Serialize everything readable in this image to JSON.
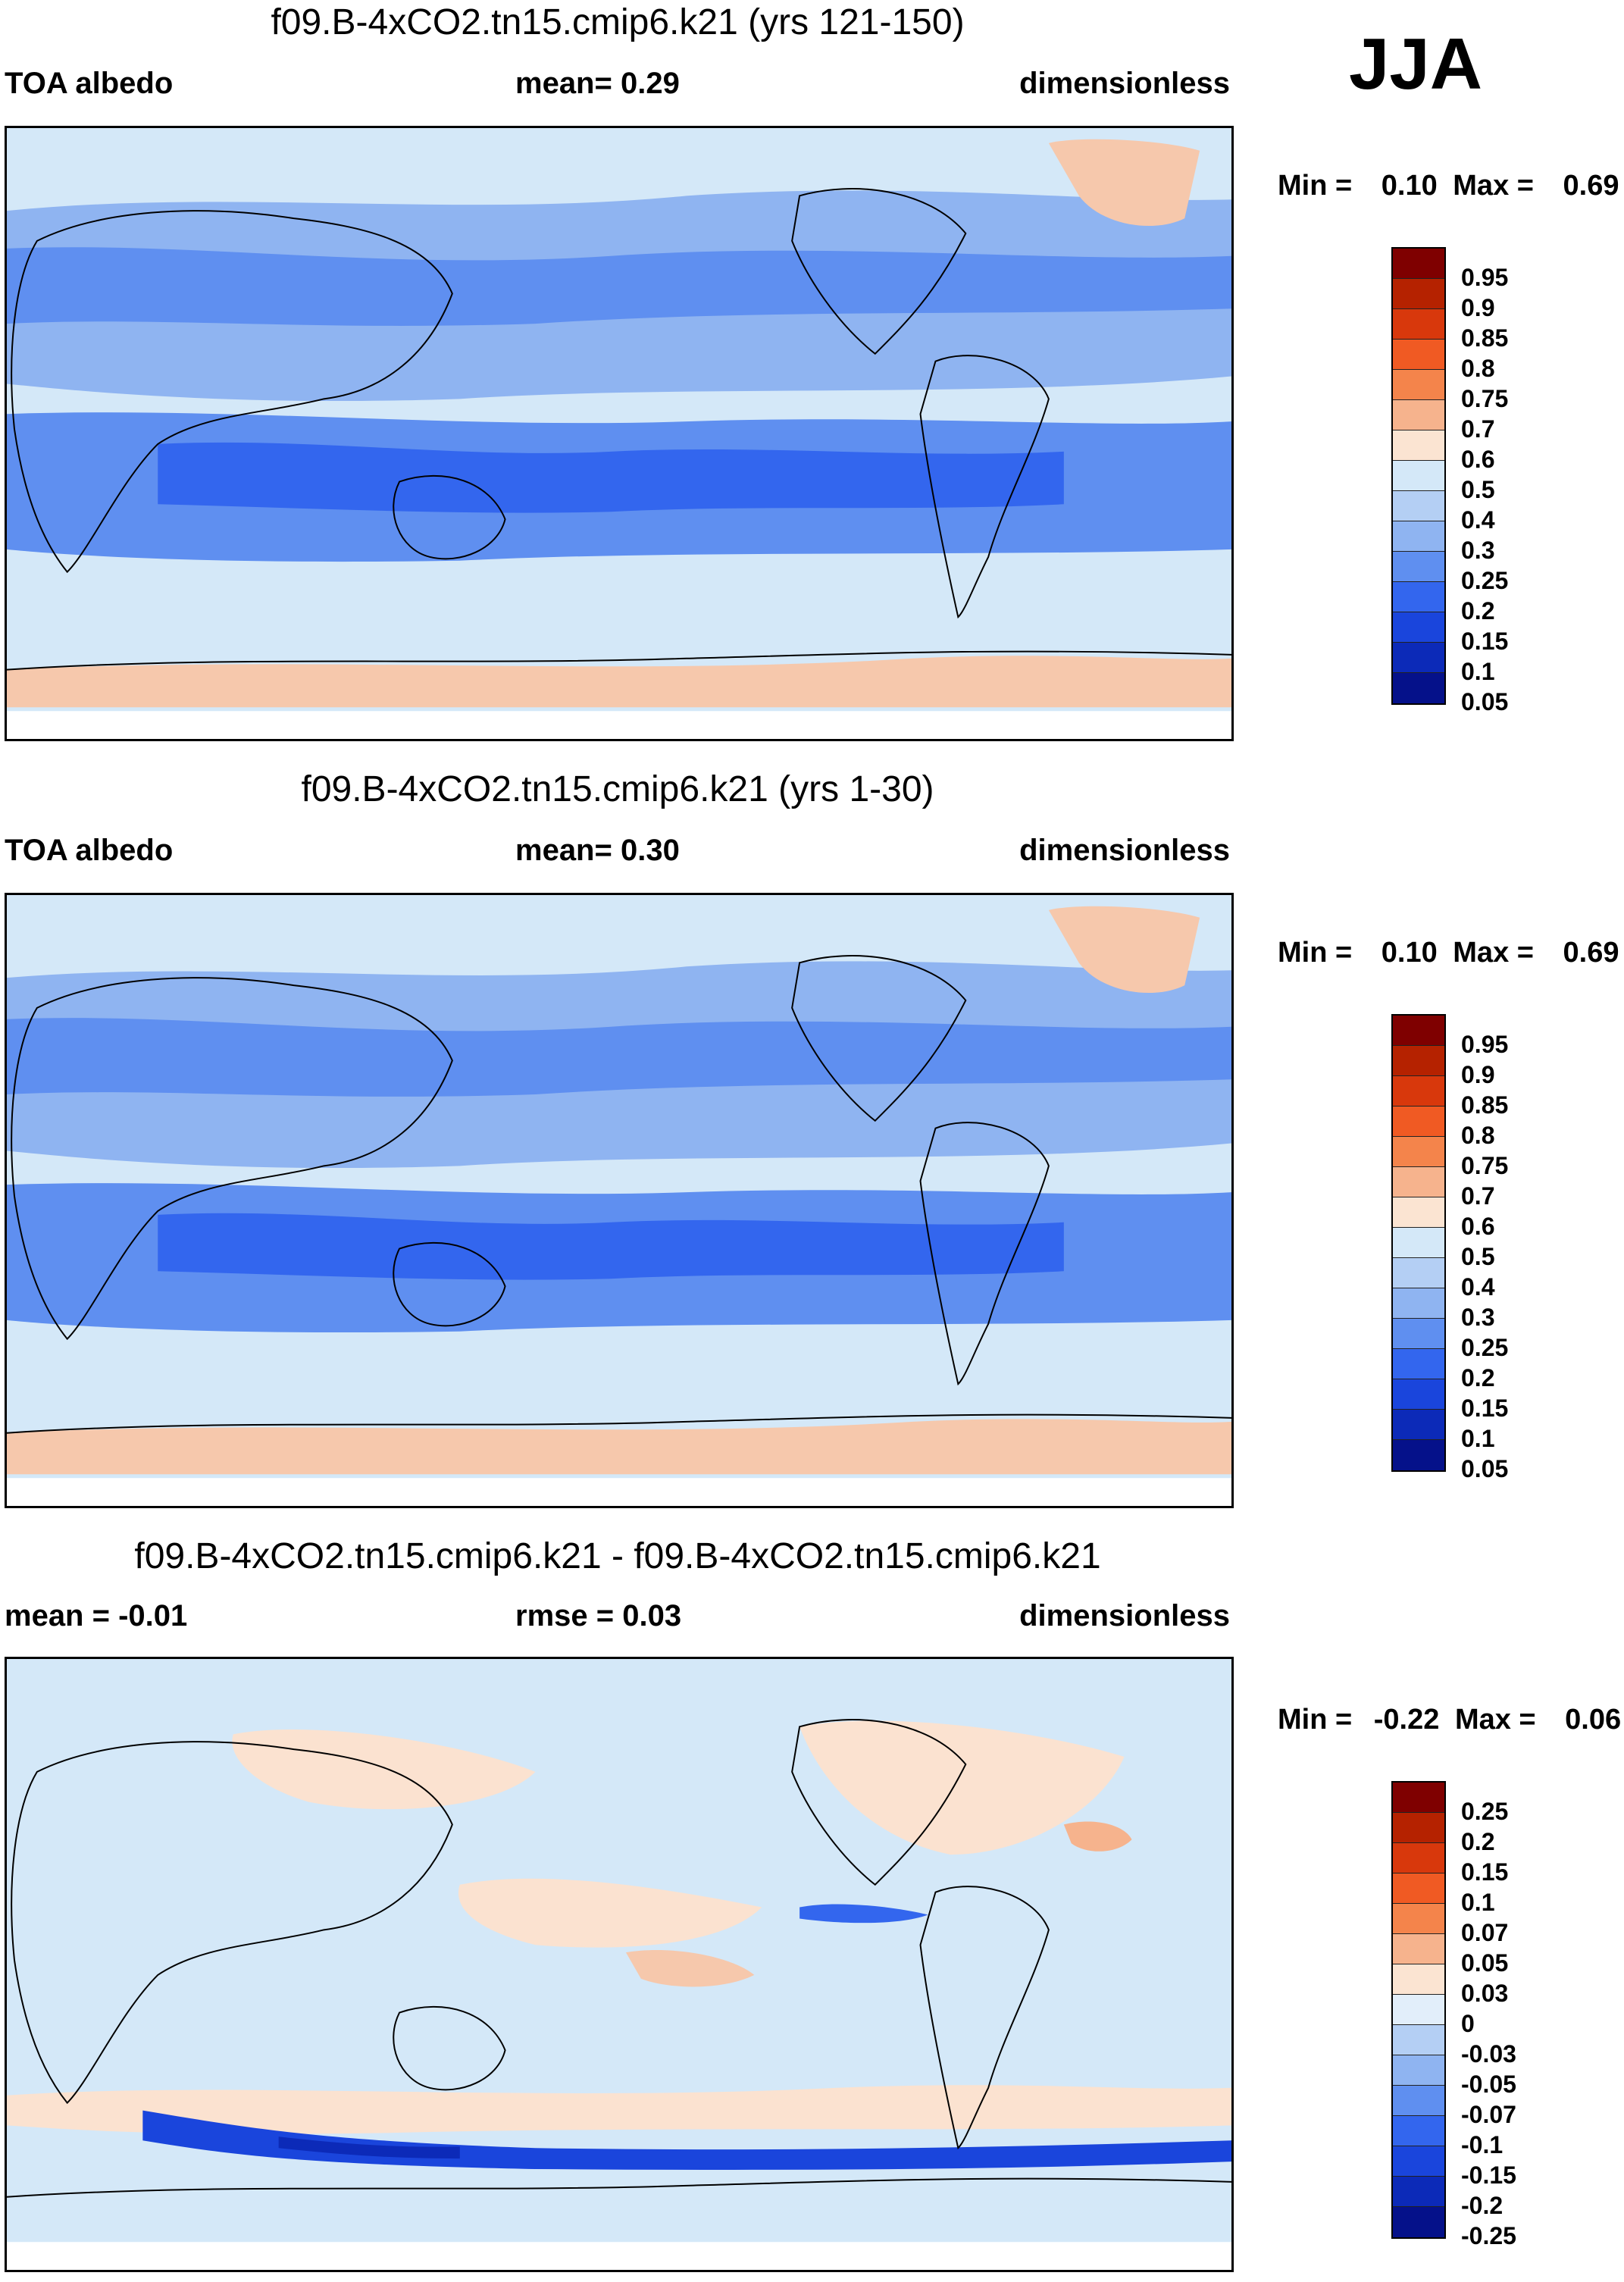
{
  "season": "JJA",
  "panels": [
    {
      "title": "f09.B-4xCO2.tn15.cmip6.k21 (yrs 121-150)",
      "left_label": "TOA albedo",
      "mid_label": "mean=   0.29",
      "right_label": "dimensionless",
      "min_label": "Min =",
      "min_value": "0.10",
      "max_label": "Max =",
      "max_value": "0.69",
      "colorbar": {
        "colors": [
          "#7f0000",
          "#b52200",
          "#d8380c",
          "#f05a23",
          "#f4844b",
          "#f6b38d",
          "#fbe4d2",
          "#d4e8f8",
          "#b4cff4",
          "#8fb4f1",
          "#5f8ff0",
          "#3366ee",
          "#1a45dc",
          "#0c2ab8",
          "#05118a"
        ],
        "labels": [
          "0.95",
          "0.9",
          "0.85",
          "0.8",
          "0.75",
          "0.7",
          "0.6",
          "0.5",
          "0.4",
          "0.3",
          "0.25",
          "0.2",
          "0.15",
          "0.1",
          "0.05"
        ]
      }
    },
    {
      "title": "f09.B-4xCO2.tn15.cmip6.k21 (yrs 1-30)",
      "left_label": "TOA albedo",
      "mid_label": "mean=   0.30",
      "right_label": "dimensionless",
      "min_label": "Min =",
      "min_value": "0.10",
      "max_label": "Max =",
      "max_value": "0.69",
      "colorbar": {
        "colors": [
          "#7f0000",
          "#b52200",
          "#d8380c",
          "#f05a23",
          "#f4844b",
          "#f6b38d",
          "#fbe4d2",
          "#d4e8f8",
          "#b4cff4",
          "#8fb4f1",
          "#5f8ff0",
          "#3366ee",
          "#1a45dc",
          "#0c2ab8",
          "#05118a"
        ],
        "labels": [
          "0.95",
          "0.9",
          "0.85",
          "0.8",
          "0.75",
          "0.7",
          "0.6",
          "0.5",
          "0.4",
          "0.3",
          "0.25",
          "0.2",
          "0.15",
          "0.1",
          "0.05"
        ]
      }
    },
    {
      "title": "f09.B-4xCO2.tn15.cmip6.k21 - f09.B-4xCO2.tn15.cmip6.k21",
      "left_label": "mean =  -0.01",
      "mid_label": "rmse =   0.03",
      "right_label": "dimensionless",
      "min_label": "Min =",
      "min_value": "-0.22",
      "max_label": "Max =",
      "max_value": "0.06",
      "colorbar": {
        "colors": [
          "#7f0000",
          "#b52200",
          "#d8380c",
          "#f05a23",
          "#f4844b",
          "#f6b38d",
          "#fbe4d2",
          "#e2eefa",
          "#b4cff4",
          "#8fb4f1",
          "#5f8ff0",
          "#3366ee",
          "#1a45dc",
          "#0c2ab8",
          "#05118a"
        ],
        "labels": [
          "0.25",
          "0.2",
          "0.15",
          "0.1",
          "0.07",
          "0.05",
          "0.03",
          "0",
          "-0.03",
          "-0.05",
          "-0.07",
          "-0.1",
          "-0.15",
          "-0.2",
          "-0.25"
        ]
      }
    }
  ],
  "map_colors": {
    "ocean_light": "#d4e8f8",
    "band_mid": "#8fb4f1",
    "band_dark": "#5f8ff0",
    "band_darker": "#3366ee",
    "ice": "#f6c8ac",
    "diff_base": "#d4e8f8",
    "diff_warm": "#fbe2d0",
    "coast": "#000000"
  }
}
